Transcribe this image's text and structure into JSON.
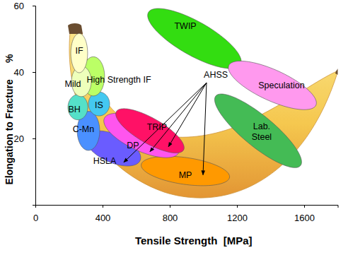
{
  "chart_data": {
    "type": "ellipse",
    "x_label": "Tensile Strength  [MPa]",
    "y_label": "Elongation to Fracture      %",
    "xlim": [
      0,
      1800
    ],
    "xticks": [
      0,
      400,
      800,
      1200,
      1600
    ],
    "ylim": [
      0,
      60
    ],
    "yticks": [
      20,
      40,
      60
    ],
    "series": [
      {
        "name": "TWIP",
        "color": "#33dd11",
        "center": [
          947,
          50.1
        ],
        "semi_axes": [
          [
            274,
            -7.9
          ],
          [
            -51,
            -4.4
          ]
        ],
        "label_at": [
          893,
          54
        ]
      },
      {
        "name": "Speculation",
        "color": "#ff99ee",
        "center": [
          1411,
          36
        ],
        "semi_axes": [
          [
            259,
            -6.0
          ],
          [
            -39,
            -4.2
          ]
        ],
        "label_at": [
          1465,
          36
        ]
      },
      {
        "name": "Lab.\nSteel",
        "color": "#44bb55",
        "center": [
          1326,
          22.3
        ],
        "semi_axes": [
          [
            252,
            -10.5
          ],
          [
            -59,
            -3.6
          ]
        ],
        "label_at": [
          1347,
          22.1
        ]
      },
      {
        "name": "MP",
        "color": "#ff9900",
        "center": [
          893,
          10.2
        ],
        "semi_axes": [
          [
            263,
            -1.9
          ],
          [
            -11,
            -4.0
          ]
        ],
        "label_at": [
          893,
          9.1
        ]
      },
      {
        "name": "HSLA",
        "color": "#6a5cff",
        "center": [
          463,
          17
        ],
        "semi_axes": [
          [
            160,
            -3.7
          ],
          [
            -36,
            -3.8
          ]
        ],
        "label_at": [
          413,
          13.2
        ]
      },
      {
        "name": "DP",
        "color": "#ff55ee",
        "center": [
          632,
          20.9
        ],
        "semi_axes": [
          [
            221,
            -5.2
          ],
          [
            -39,
            -4.2
          ]
        ],
        "label_at": [
          581,
          17.9
        ]
      },
      {
        "name": "TRIP",
        "color": "#ff1166",
        "center": [
          682,
          22.3
        ],
        "semi_axes": [
          [
            200,
            -5.8
          ],
          [
            -38,
            -3.3
          ]
        ],
        "label_at": [
          724,
          23.4
        ]
      },
      {
        "name": "C-Mn",
        "color": "#4a90ff",
        "center": [
          316,
          22.3
        ],
        "semi_axes": [
          [
            67,
            0
          ],
          [
            0,
            5.9
          ]
        ],
        "label_at": [
          286,
          22.8
        ]
      },
      {
        "name": "BH",
        "color": "#55e0c8",
        "center": [
          253,
          29.4
        ],
        "semi_axes": [
          [
            59,
            0
          ],
          [
            0,
            3.8
          ]
        ],
        "label_at": [
          232,
          28.7
        ]
      },
      {
        "name": "IS",
        "color": "#44c8f0",
        "center": [
          379,
          30.4
        ],
        "semi_axes": [
          [
            63,
            0
          ],
          [
            0,
            3.6
          ]
        ],
        "label_at": [
          379,
          30
        ]
      },
      {
        "name": "High Strength IF",
        "color": "#bbff66",
        "center": [
          345,
          38.7
        ],
        "semi_axes": [
          [
            67,
            0
          ],
          [
            0,
            5.9
          ]
        ],
        "label_at": [
          497,
          37.7
        ]
      },
      {
        "name": "Mild",
        "color": "#eeffbb",
        "center": [
          274,
          37.2
        ],
        "semi_axes": [
          [
            59,
            0
          ],
          [
            0,
            4.6
          ]
        ],
        "label_at": [
          223,
          36.4
        ]
      },
      {
        "name": "IF",
        "color": "#ffffc8",
        "center": [
          261,
          45.7
        ],
        "semi_axes": [
          [
            50,
            0
          ],
          [
            0,
            5.9
          ]
        ],
        "label_at": [
          261,
          46.4
        ]
      }
    ],
    "annotations": [
      {
        "text": "AHSS",
        "at": [
          1074,
          38.9
        ],
        "arrow_from": [
          1019,
          36.8
        ],
        "arrows_to": [
          [
            792,
            17.5
          ],
          [
            682,
            16
          ],
          [
            526,
            12.8
          ],
          [
            998,
            9
          ]
        ]
      }
    ]
  }
}
